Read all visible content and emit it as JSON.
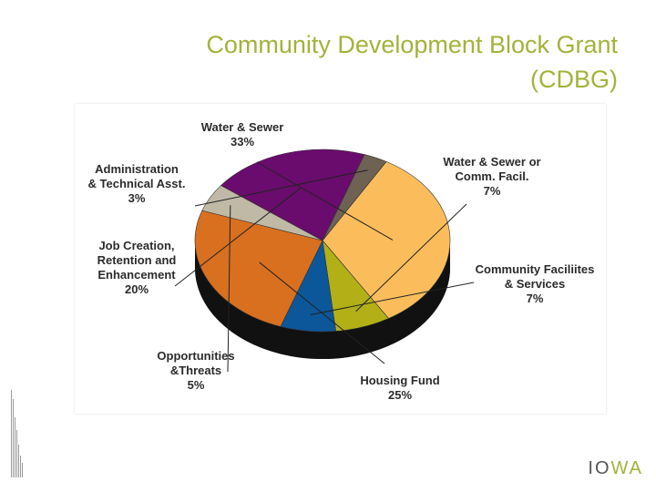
{
  "title": {
    "line1": "Community Development Block Grant",
    "line2": "(CDBG)"
  },
  "logo": {
    "part1": "I",
    "part2": "O",
    "part3": "WA"
  },
  "colors": {
    "title": "#a4b23a",
    "accent": "#a4b23a"
  },
  "chart_data": {
    "type": "pie",
    "title": "",
    "slices": [
      {
        "label": [
          "Water & Sewer"
        ],
        "pct_label": "33%",
        "value": 33,
        "color": "#fbbd5c"
      },
      {
        "label": [
          "Water & Sewer or",
          "Comm. Facil."
        ],
        "pct_label": "7%",
        "value": 7,
        "color": "#b3b017"
      },
      {
        "label": [
          "Community Faciliites",
          "& Services"
        ],
        "pct_label": "7%",
        "value": 7,
        "color": "#0b579a"
      },
      {
        "label": [
          "Housing Fund"
        ],
        "pct_label": "25%",
        "value": 25,
        "color": "#d8701f"
      },
      {
        "label": [
          "Opportunities",
          "&Threats"
        ],
        "pct_label": "5%",
        "value": 5,
        "color": "#bfb9a6"
      },
      {
        "label": [
          "Job Creation,",
          "Retention and",
          "Enhancement"
        ],
        "pct_label": "20%",
        "value": 20,
        "color": "#6a0c6d"
      },
      {
        "label": [
          "Administration",
          "& Technical Asst."
        ],
        "pct_label": "3%",
        "value": 3,
        "color": "#6d6253"
      }
    ]
  }
}
